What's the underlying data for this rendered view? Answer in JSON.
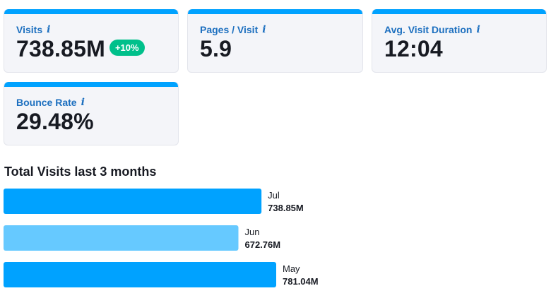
{
  "metrics": {
    "visits": {
      "label": "Visits",
      "value": "738.85M",
      "change": "+10%",
      "icon": "info-icon"
    },
    "pages_per_visit": {
      "label": "Pages / Visit",
      "value": "5.9",
      "icon": "info-icon"
    },
    "avg_visit_duration": {
      "label": "Avg. Visit Duration",
      "value": "12:04",
      "icon": "info-icon"
    },
    "bounce_rate": {
      "label": "Bounce Rate",
      "value": "29.48%",
      "icon": "info-icon"
    }
  },
  "info_glyph": "i",
  "colors": {
    "accent": "#00a2ff",
    "accent_light": "#66c9ff",
    "label_blue": "#1c6fbf",
    "badge_green": "#00c08b",
    "card_bg": "#f4f5f9"
  },
  "chart_section": {
    "title": "Total Visits last 3 months"
  },
  "chart_data": {
    "type": "bar",
    "orientation": "horizontal",
    "categories": [
      "Jul",
      "Jun",
      "May"
    ],
    "values": [
      738.85,
      672.76,
      781.04
    ],
    "value_labels": [
      "738.85M",
      "672.76M",
      "781.04M"
    ],
    "bar_colors": [
      "#00a2ff",
      "#66c9ff",
      "#00a2ff"
    ],
    "unit": "M",
    "xlim": [
      0,
      781.04
    ]
  }
}
